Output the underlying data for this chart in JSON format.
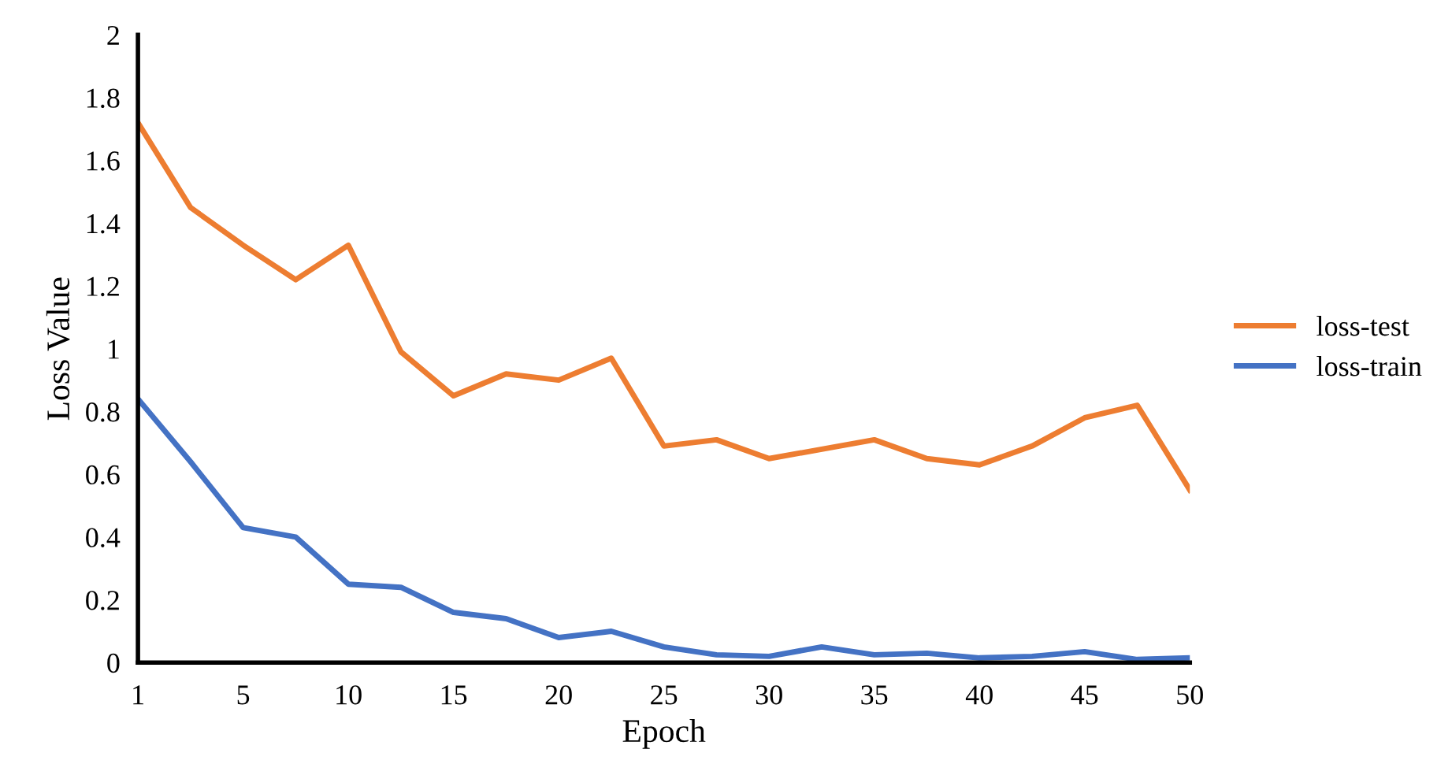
{
  "chart_data": {
    "type": "line",
    "xlabel": "Epoch",
    "ylabel": "Loss Value",
    "categories": [
      "1",
      null,
      "5",
      null,
      "10",
      null,
      "15",
      null,
      "20",
      null,
      "25",
      null,
      "30",
      null,
      "35",
      null,
      "40",
      null,
      "45",
      null,
      "50"
    ],
    "series": [
      {
        "name": "loss-test",
        "color": "#ed7d31",
        "values": [
          1.72,
          1.45,
          1.33,
          1.22,
          1.33,
          0.99,
          0.85,
          0.92,
          0.9,
          0.97,
          0.69,
          0.71,
          0.65,
          0.68,
          0.71,
          0.65,
          0.63,
          0.69,
          0.78,
          0.82,
          0.55
        ]
      },
      {
        "name": "loss-train",
        "color": "#4472c4",
        "values": [
          0.84,
          0.64,
          0.43,
          0.4,
          0.25,
          0.24,
          0.16,
          0.14,
          0.08,
          0.1,
          0.05,
          0.025,
          0.02,
          0.05,
          0.025,
          0.03,
          0.015,
          0.02,
          0.035,
          0.01,
          0.015
        ]
      }
    ],
    "ylim": [
      0,
      2
    ],
    "yticks": [
      0,
      0.2,
      0.4,
      0.6,
      0.8,
      1,
      1.2,
      1.4,
      1.6,
      1.8,
      2
    ],
    "grid": false,
    "legend": "right",
    "marker": "none",
    "line_style": "solid"
  }
}
